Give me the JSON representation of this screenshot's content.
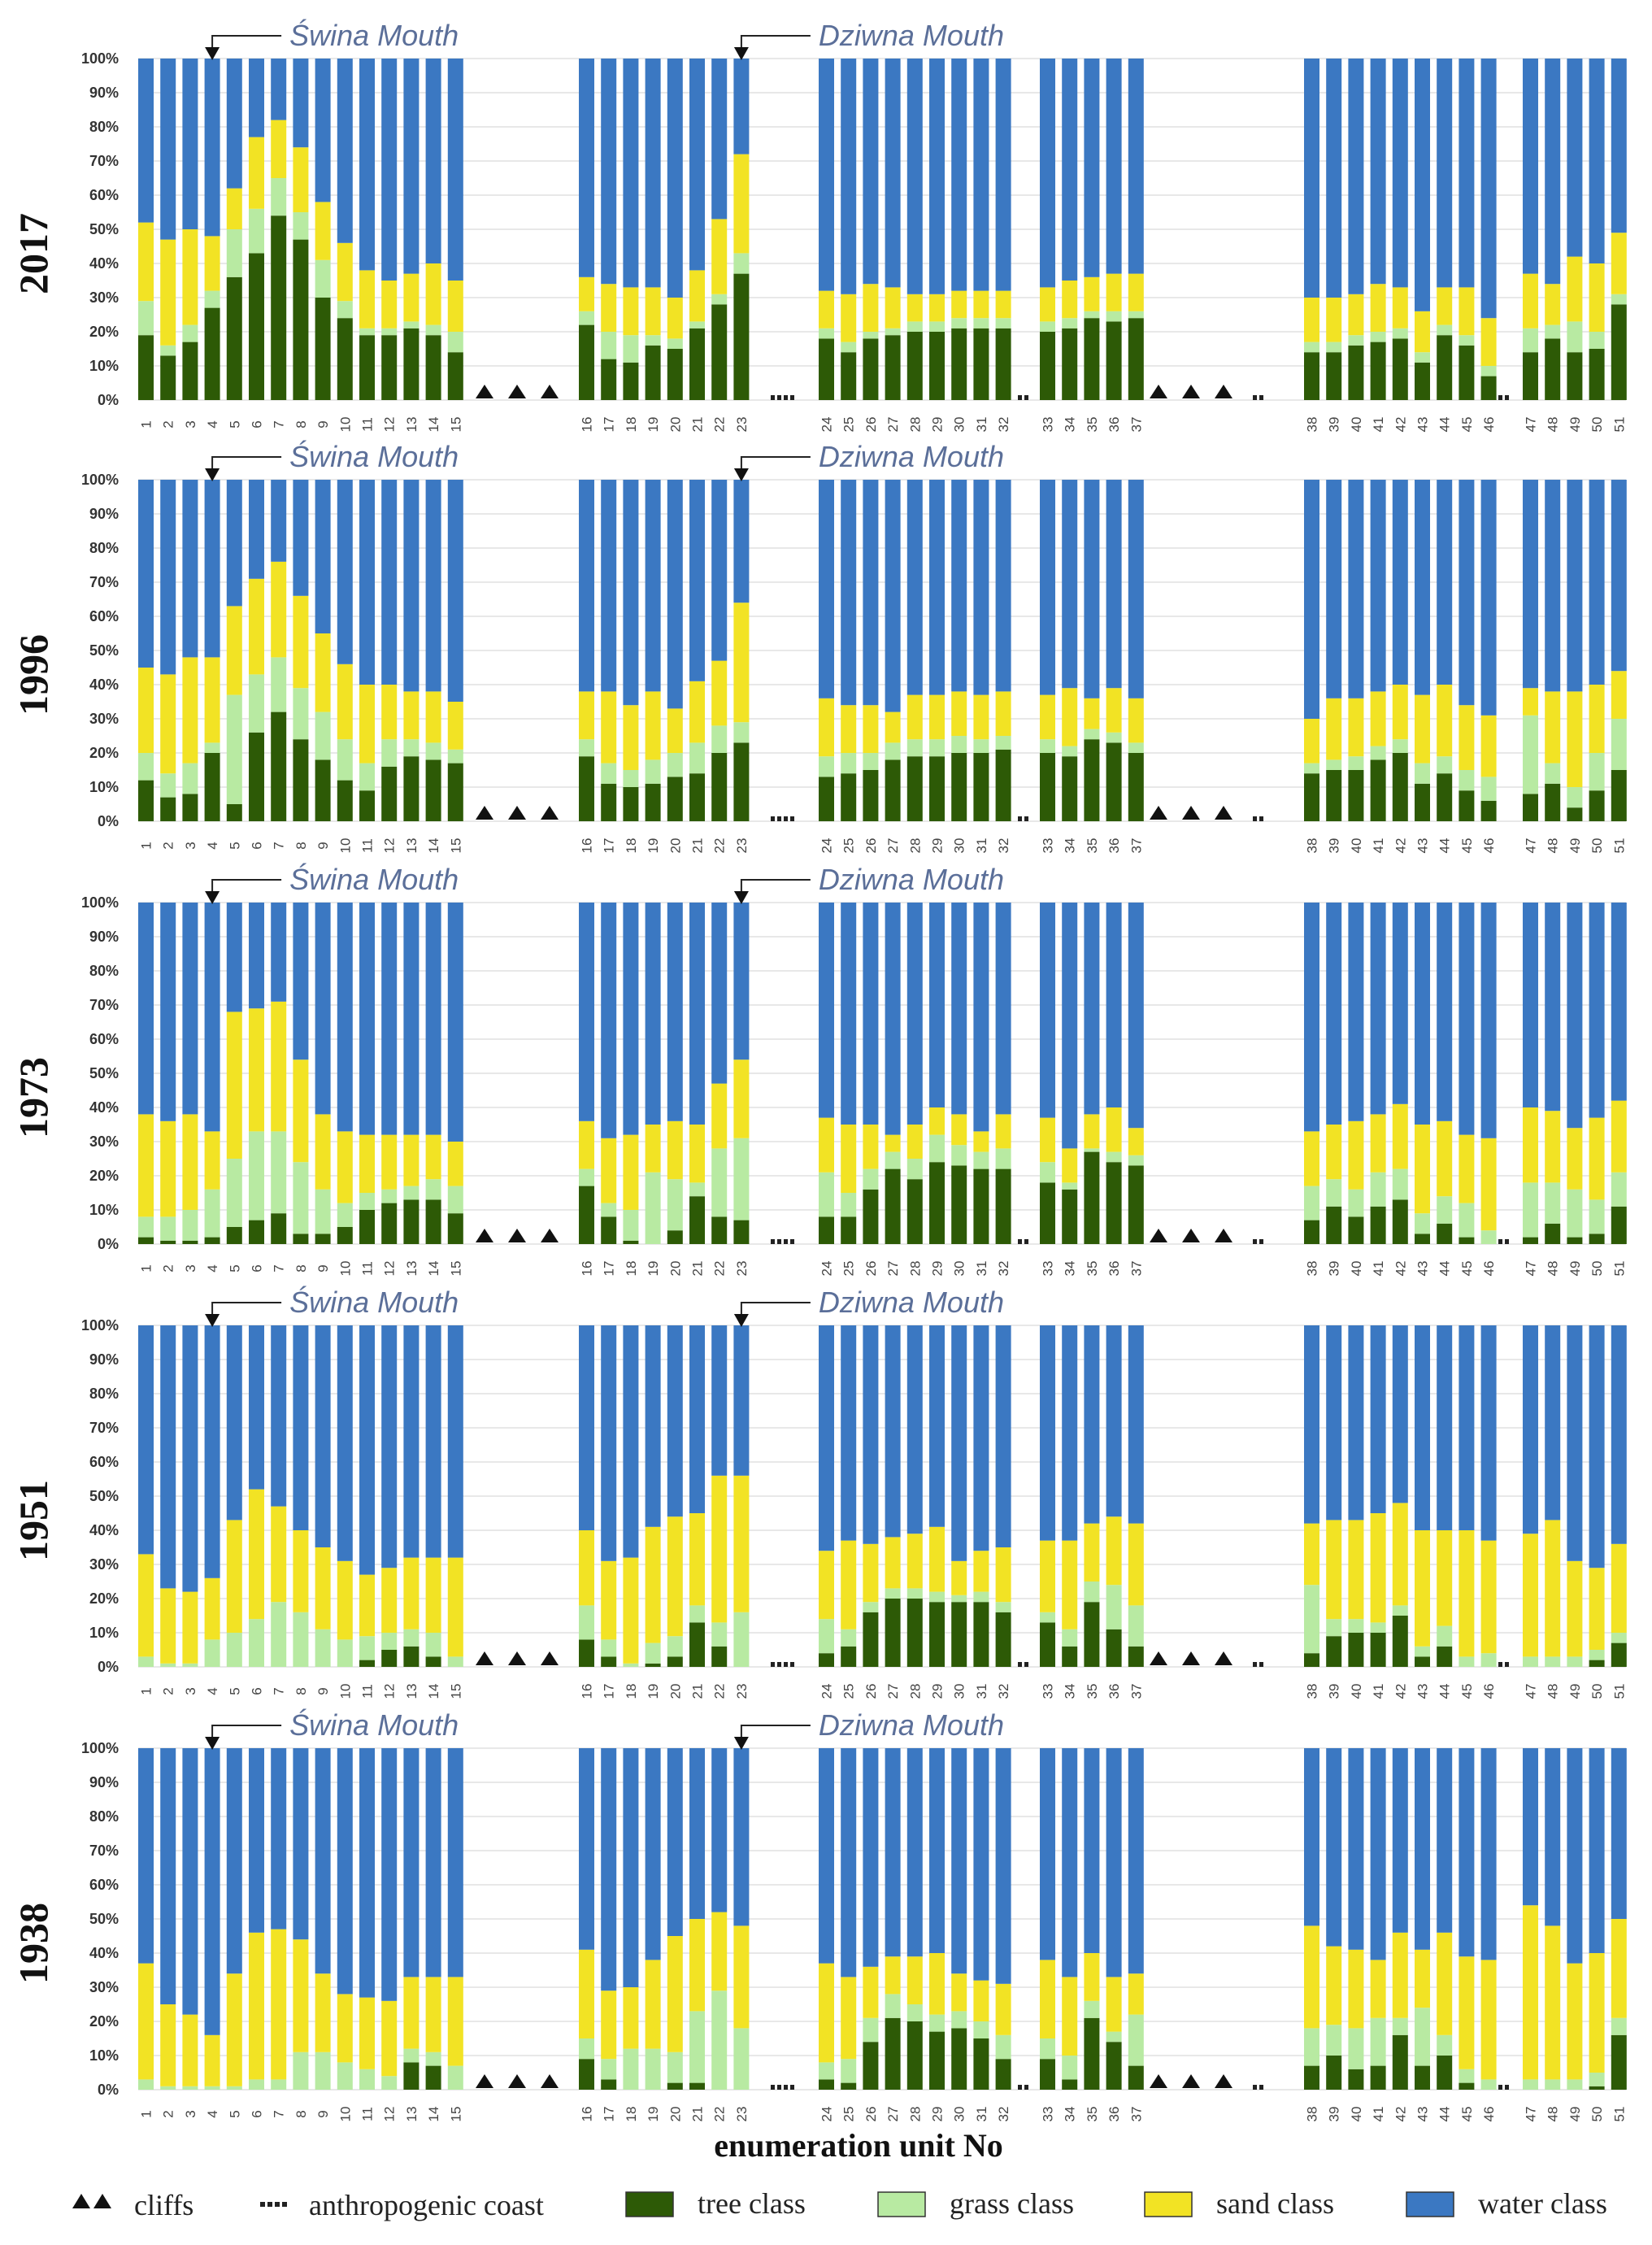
{
  "chart_data": {
    "type": "stacked-bar",
    "x_title": "enumeration unit No",
    "y_ticks": [
      "0%",
      "10%",
      "20%",
      "30%",
      "40%",
      "50%",
      "60%",
      "70%",
      "80%",
      "90%",
      "100%"
    ],
    "ylim": [
      0,
      100
    ],
    "annotations": [
      {
        "label": "Świna Mouth",
        "unit": 4
      },
      {
        "label": "Dziwna Mouth",
        "unit": 23
      }
    ],
    "bar_groups": [
      [
        1,
        2,
        3,
        4,
        5,
        6,
        7,
        8,
        9,
        10,
        11,
        12,
        13,
        14,
        15
      ],
      [
        16,
        17,
        18,
        19,
        20,
        21,
        22,
        23
      ],
      [
        24,
        25,
        26,
        27,
        28,
        29,
        30,
        31,
        32
      ],
      [
        33,
        34,
        35,
        36,
        37
      ],
      [
        38,
        39,
        40,
        41,
        42,
        43,
        44,
        45,
        46
      ],
      [
        47,
        48,
        49,
        50,
        51
      ]
    ],
    "gap_markers": [
      {
        "type": "cliffs",
        "symbol": "▲ ▲ ▲",
        "after_group": 0
      },
      {
        "type": "anthropogenic",
        "symbol": "▪▪▪▪",
        "after_group": 1
      },
      {
        "type": "anthropogenic",
        "symbol": "▪▪",
        "after_group": 2
      },
      {
        "type": "cliffs",
        "symbol": "▲ ▲ ▲",
        "after_group": 3
      },
      {
        "type": "anthropogenic",
        "symbol": "▪▪",
        "after_group": 3
      },
      {
        "type": "anthropogenic",
        "symbol": "▪▪",
        "after_group": 4,
        "hidden_in": [
          "1996"
        ]
      }
    ],
    "series_colors": {
      "tree": "#2d5a06",
      "grass": "#b8eaa2",
      "sand": "#f2e324",
      "water": "#3b78c2"
    },
    "legend": [
      {
        "key": "cliffs",
        "label": "cliffs",
        "symbol": "▲▲"
      },
      {
        "key": "anthropogenic",
        "label": "anthropogenic coast",
        "symbol": "▪▪▪▪"
      },
      {
        "key": "tree",
        "label": "tree class"
      },
      {
        "key": "grass",
        "label": "grass class"
      },
      {
        "key": "sand",
        "label": "sand class"
      },
      {
        "key": "water",
        "label": "water class"
      }
    ],
    "panels": [
      {
        "year": "2017",
        "tree": [
          19,
          13,
          17,
          27,
          36,
          43,
          54,
          47,
          30,
          24,
          19,
          19,
          21,
          19,
          14,
          22,
          12,
          11,
          16,
          15,
          21,
          28,
          37,
          18,
          14,
          18,
          19,
          20,
          20,
          21,
          21,
          21,
          20,
          21,
          24,
          23,
          24,
          14,
          14,
          16,
          17,
          18,
          11,
          19,
          16,
          7,
          14,
          18,
          14,
          15,
          28
        ],
        "grass": [
          10,
          3,
          5,
          5,
          14,
          13,
          11,
          8,
          11,
          5,
          2,
          2,
          2,
          3,
          6,
          4,
          8,
          8,
          3,
          3,
          2,
          3,
          6,
          3,
          3,
          2,
          2,
          3,
          3,
          3,
          3,
          3,
          3,
          3,
          2,
          3,
          2,
          3,
          3,
          3,
          3,
          3,
          3,
          3,
          3,
          3,
          7,
          4,
          9,
          5,
          3
        ],
        "sand": [
          23,
          31,
          28,
          16,
          12,
          21,
          17,
          19,
          17,
          17,
          17,
          14,
          14,
          18,
          15,
          10,
          14,
          14,
          14,
          12,
          15,
          22,
          29,
          11,
          14,
          14,
          12,
          8,
          8,
          8,
          8,
          8,
          10,
          11,
          10,
          11,
          11,
          13,
          13,
          12,
          14,
          12,
          12,
          11,
          14,
          14,
          16,
          12,
          19,
          20,
          18
        ]
      },
      {
        "year": "1996",
        "tree": [
          12,
          7,
          8,
          20,
          5,
          26,
          32,
          24,
          18,
          12,
          9,
          16,
          19,
          18,
          17,
          19,
          11,
          10,
          11,
          13,
          14,
          20,
          23,
          13,
          14,
          15,
          18,
          19,
          19,
          20,
          20,
          21,
          20,
          19,
          24,
          23,
          20,
          14,
          15,
          15,
          18,
          20,
          11,
          14,
          9,
          6,
          8,
          11,
          4,
          9,
          15
        ],
        "grass": [
          8,
          7,
          9,
          3,
          32,
          17,
          16,
          15,
          14,
          12,
          8,
          8,
          5,
          5,
          4,
          5,
          6,
          5,
          7,
          7,
          9,
          8,
          6,
          6,
          6,
          5,
          5,
          5,
          5,
          5,
          4,
          4,
          4,
          3,
          3,
          3,
          3,
          3,
          3,
          4,
          4,
          4,
          6,
          5,
          6,
          7,
          23,
          6,
          6,
          11,
          15
        ],
        "sand": [
          25,
          29,
          31,
          25,
          26,
          28,
          28,
          27,
          23,
          22,
          23,
          16,
          14,
          15,
          14,
          14,
          21,
          19,
          20,
          13,
          18,
          19,
          35,
          17,
          14,
          14,
          9,
          13,
          13,
          13,
          13,
          13,
          13,
          17,
          9,
          13,
          13,
          13,
          18,
          17,
          16,
          16,
          20,
          21,
          19,
          18,
          8,
          21,
          28,
          20,
          14
        ]
      },
      {
        "year": "1973",
        "tree": [
          2,
          1,
          1,
          2,
          5,
          7,
          9,
          3,
          3,
          5,
          10,
          12,
          13,
          13,
          9,
          17,
          8,
          1,
          0,
          4,
          14,
          8,
          7,
          8,
          8,
          16,
          22,
          19,
          24,
          23,
          22,
          22,
          18,
          16,
          27,
          24,
          23,
          7,
          11,
          8,
          11,
          13,
          3,
          6,
          2,
          0,
          2,
          6,
          2,
          3,
          11
        ],
        "grass": [
          6,
          7,
          9,
          14,
          20,
          26,
          24,
          21,
          13,
          7,
          5,
          4,
          4,
          6,
          8,
          5,
          4,
          9,
          21,
          15,
          4,
          20,
          24,
          13,
          7,
          6,
          5,
          6,
          8,
          6,
          5,
          6,
          6,
          2,
          1,
          3,
          3,
          10,
          8,
          8,
          10,
          9,
          6,
          8,
          10,
          4,
          16,
          12,
          14,
          10,
          10
        ],
        "sand": [
          30,
          28,
          28,
          17,
          43,
          36,
          38,
          30,
          22,
          21,
          17,
          16,
          15,
          13,
          13,
          14,
          19,
          22,
          14,
          17,
          17,
          19,
          23,
          16,
          20,
          13,
          5,
          10,
          8,
          9,
          6,
          10,
          13,
          10,
          10,
          13,
          8,
          16,
          16,
          20,
          17,
          19,
          26,
          22,
          20,
          27,
          22,
          21,
          18,
          24,
          21
        ]
      },
      {
        "year": "1951",
        "tree": [
          0,
          0,
          0,
          0,
          0,
          0,
          0,
          0,
          0,
          0,
          2,
          5,
          6,
          3,
          0,
          8,
          3,
          0,
          1,
          3,
          13,
          6,
          0,
          4,
          6,
          16,
          20,
          20,
          19,
          19,
          19,
          16,
          13,
          6,
          19,
          11,
          6,
          4,
          9,
          10,
          10,
          15,
          3,
          6,
          0,
          0,
          0,
          0,
          0,
          2,
          7
        ],
        "grass": [
          3,
          1,
          1,
          8,
          10,
          14,
          19,
          16,
          11,
          8,
          7,
          5,
          5,
          7,
          3,
          10,
          5,
          1,
          6,
          6,
          5,
          7,
          16,
          10,
          5,
          3,
          3,
          3,
          3,
          2,
          3,
          3,
          3,
          5,
          6,
          13,
          12,
          20,
          5,
          4,
          3,
          3,
          3,
          6,
          3,
          4,
          3,
          3,
          3,
          3,
          3
        ],
        "sand": [
          30,
          22,
          21,
          18,
          33,
          38,
          28,
          24,
          24,
          23,
          18,
          19,
          21,
          22,
          29,
          22,
          23,
          31,
          34,
          35,
          27,
          43,
          40,
          20,
          26,
          17,
          15,
          16,
          19,
          10,
          12,
          16,
          21,
          26,
          17,
          20,
          24,
          18,
          29,
          29,
          32,
          30,
          34,
          28,
          37,
          33,
          36,
          40,
          28,
          24,
          26
        ]
      },
      {
        "year": "1938",
        "tree": [
          0,
          0,
          0,
          0,
          0,
          0,
          0,
          0,
          0,
          0,
          0,
          0,
          8,
          7,
          0,
          9,
          3,
          0,
          0,
          2,
          2,
          0,
          0,
          3,
          2,
          14,
          21,
          20,
          17,
          18,
          15,
          9,
          9,
          3,
          21,
          14,
          7,
          7,
          10,
          6,
          7,
          16,
          7,
          10,
          2,
          0,
          0,
          0,
          0,
          1,
          16
        ],
        "grass": [
          3,
          1,
          1,
          1,
          1,
          3,
          3,
          11,
          11,
          8,
          6,
          4,
          4,
          4,
          7,
          6,
          6,
          12,
          12,
          9,
          21,
          29,
          18,
          5,
          7,
          7,
          7,
          5,
          5,
          5,
          5,
          7,
          6,
          7,
          5,
          3,
          15,
          11,
          9,
          12,
          14,
          5,
          17,
          6,
          4,
          3,
          3,
          3,
          3,
          4,
          5
        ],
        "sand": [
          34,
          24,
          21,
          15,
          33,
          43,
          44,
          33,
          23,
          20,
          21,
          22,
          21,
          22,
          26,
          26,
          20,
          18,
          26,
          34,
          27,
          23,
          30,
          29,
          24,
          15,
          11,
          14,
          18,
          11,
          12,
          15,
          23,
          23,
          14,
          16,
          12,
          30,
          23,
          23,
          17,
          25,
          17,
          30,
          33,
          35,
          51,
          45,
          34,
          35,
          29
        ]
      }
    ]
  }
}
